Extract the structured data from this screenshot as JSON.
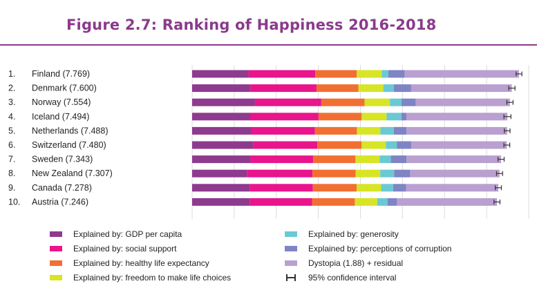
{
  "title": "Figure 2.7: Ranking of Happiness 2016-2018",
  "colors": {
    "gdp": "#8e3a8e",
    "social": "#e8158c",
    "health": "#f26f32",
    "freedom": "#d7e526",
    "generosity": "#6bc9d3",
    "corruption": "#7f84c4",
    "dystopia": "#b9a0d0",
    "accent": "#8a3a8c"
  },
  "chart_data": {
    "type": "bar",
    "orientation": "horizontal",
    "stacked": true,
    "title": "Figure 2.7: Ranking of Happiness 2016-2018",
    "categories": [
      "1.  Finland (7.769)",
      "2.  Denmark (7.600)",
      "3.  Norway (7.554)",
      "4.  Iceland (7.494)",
      "5.  Netherlands (7.488)",
      "6.  Switzerland (7.480)",
      "7.  Sweden (7.343)",
      "8.  New Zealand (7.307)",
      "9.  Canada (7.278)",
      "10.  Austria (7.246)"
    ],
    "ranks": [
      "1.",
      "2.",
      "3.",
      "4.",
      "5.",
      "6.",
      "7.",
      "8.",
      "9.",
      "10."
    ],
    "countries": [
      "Finland (7.769)",
      "Denmark (7.600)",
      "Norway (7.554)",
      "Iceland (7.494)",
      "Netherlands (7.488)",
      "Switzerland (7.480)",
      "Sweden (7.343)",
      "New Zealand (7.307)",
      "Canada (7.278)",
      "Austria (7.246)"
    ],
    "xlim": [
      0,
      8
    ],
    "series": [
      {
        "name": "Explained by: GDP per capita",
        "key": "gdp",
        "values": [
          1.34,
          1.383,
          1.488,
          1.38,
          1.396,
          1.452,
          1.387,
          1.303,
          1.365,
          1.376
        ]
      },
      {
        "name": "Explained by: social support",
        "key": "social",
        "values": [
          1.587,
          1.573,
          1.582,
          1.624,
          1.522,
          1.526,
          1.487,
          1.557,
          1.505,
          1.475
        ]
      },
      {
        "name": "Explained by: healthy life expectancy",
        "key": "health",
        "values": [
          0.986,
          0.996,
          1.028,
          1.026,
          0.999,
          1.052,
          1.009,
          1.026,
          1.039,
          1.016
        ]
      },
      {
        "name": "Explained by: freedom to make life choices",
        "key": "freedom",
        "values": [
          0.596,
          0.592,
          0.603,
          0.591,
          0.557,
          0.572,
          0.574,
          0.585,
          0.584,
          0.532
        ]
      },
      {
        "name": "Explained by: generosity",
        "key": "generosity",
        "values": [
          0.153,
          0.252,
          0.271,
          0.354,
          0.322,
          0.263,
          0.267,
          0.33,
          0.285,
          0.244
        ]
      },
      {
        "name": "Explained by: perceptions of corruption",
        "key": "corruption",
        "values": [
          0.393,
          0.41,
          0.341,
          0.118,
          0.298,
          0.343,
          0.373,
          0.38,
          0.308,
          0.226
        ]
      },
      {
        "name": "Dystopia (1.88) + residual",
        "key": "dystopia",
        "values": [
          2.714,
          2.394,
          2.241,
          2.401,
          2.394,
          2.272,
          2.246,
          2.126,
          2.192,
          2.377
        ]
      }
    ],
    "confidence_interval": {
      "name": "95% confidence interval",
      "low": [
        7.7,
        7.525,
        7.48,
        7.41,
        7.42,
        7.41,
        7.27,
        7.235,
        7.205,
        7.175
      ],
      "high": [
        7.838,
        7.675,
        7.628,
        7.578,
        7.556,
        7.55,
        7.416,
        7.379,
        7.351,
        7.317
      ]
    },
    "grid": true,
    "legend_position": "bottom"
  }
}
